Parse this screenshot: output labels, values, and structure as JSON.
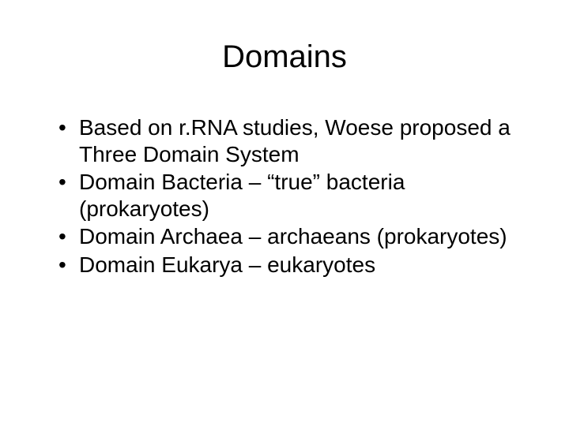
{
  "slide": {
    "title": "Domains",
    "title_fontsize": 40,
    "title_color": "#000000",
    "background_color": "#ffffff",
    "bullets": [
      "Based on r.RNA studies, Woese proposed a Three Domain System",
      "Domain Bacteria – “true” bacteria (prokaryotes)",
      "Domain Archaea – archaeans (prokaryotes)",
      "Domain Eukarya – eukaryotes"
    ],
    "bullet_fontsize": 28,
    "bullet_color": "#000000",
    "font_family": "Arial"
  }
}
